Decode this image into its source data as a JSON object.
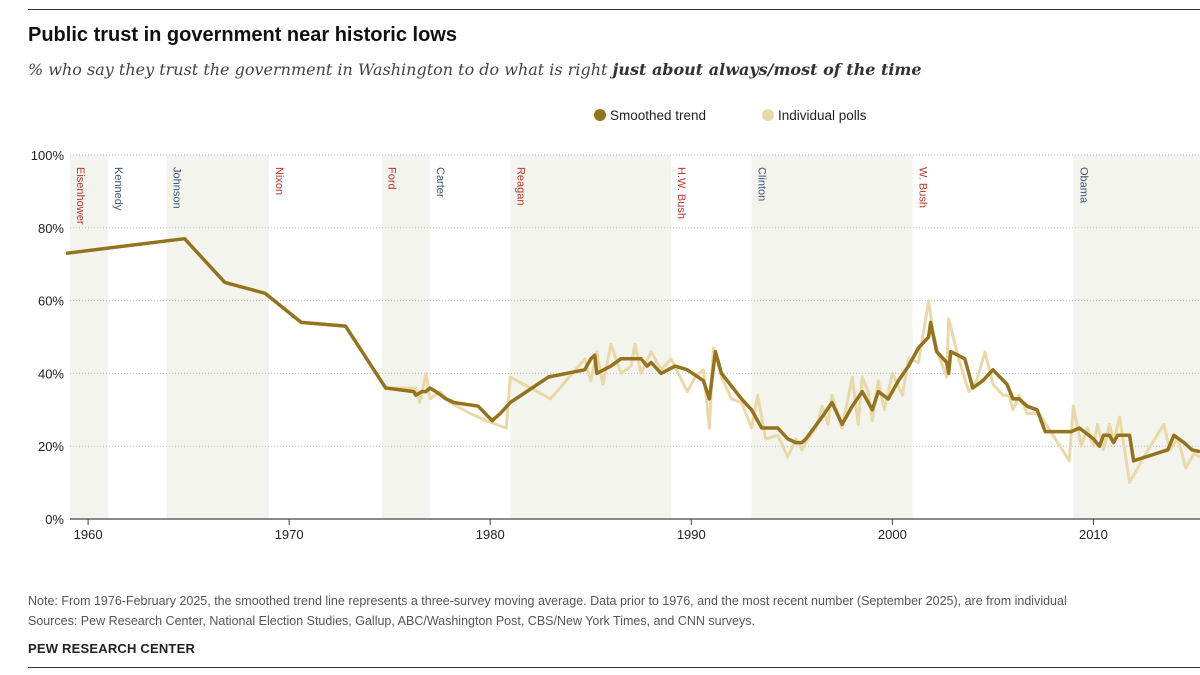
{
  "title": "Public trust in government near historic lows",
  "subtitle_plain": "% who say they trust the government in Washington to do what is right ",
  "subtitle_bold": "just about always/most of the time",
  "note": "Note: From 1976-February 2025, the smoothed trend line represents a three-survey moving average. Data prior to 1976, and the most recent number (September 2025), are from individual",
  "sources": "Sources: Pew Research Center, National Election Studies, Gallup, ABC/Washington Post, CBS/New York Times, and CNN surveys.",
  "brand": "PEW RESEARCH CENTER",
  "colors": {
    "smoothed": "#94731f",
    "polls": "#ead9a8",
    "rep": "#b8382c",
    "dem": "#3b5673",
    "shade": "#f4f4ef"
  },
  "chart_data": {
    "type": "line",
    "title": "Public trust in government near historic lows",
    "xlabel": "",
    "ylabel": "",
    "xlim": [
      1959.1,
      2015.3
    ],
    "ylim": [
      0,
      100
    ],
    "xticks": [
      1960,
      1970,
      1980,
      1990,
      2000,
      2010
    ],
    "yticks": [
      0,
      20,
      40,
      60,
      80,
      100
    ],
    "ytick_labels": [
      "0%",
      "20%",
      "40%",
      "60%",
      "80%",
      "100%"
    ],
    "grid": true,
    "legend": {
      "position": "top-center",
      "entries": [
        "Smoothed trend",
        "Individual polls"
      ]
    },
    "presidents": [
      {
        "name": "Eisenhower",
        "start": 1959.1,
        "end": 1961,
        "party": "rep"
      },
      {
        "name": "Kennedy",
        "start": 1961,
        "end": 1963.9,
        "party": "dem"
      },
      {
        "name": "Johnson",
        "start": 1963.9,
        "end": 1969,
        "party": "dem"
      },
      {
        "name": "Nixon",
        "start": 1969,
        "end": 1974.6,
        "party": "rep"
      },
      {
        "name": "Ford",
        "start": 1974.6,
        "end": 1977,
        "party": "rep"
      },
      {
        "name": "Carter",
        "start": 1977,
        "end": 1981,
        "party": "dem"
      },
      {
        "name": "Reagan",
        "start": 1981,
        "end": 1989,
        "party": "rep"
      },
      {
        "name": "H.W. Bush",
        "start": 1989,
        "end": 1993,
        "party": "rep"
      },
      {
        "name": "Clinton",
        "start": 1993,
        "end": 2001,
        "party": "dem"
      },
      {
        "name": "W. Bush",
        "start": 2001,
        "end": 2009,
        "party": "rep"
      },
      {
        "name": "Obama",
        "start": 2009,
        "end": 2015.3,
        "party": "dem"
      }
    ],
    "series": [
      {
        "name": "Individual polls",
        "points": [
          [
            1958.9,
            73
          ],
          [
            1964.8,
            77
          ],
          [
            1966.8,
            65
          ],
          [
            1968.8,
            62
          ],
          [
            1970.6,
            54
          ],
          [
            1972.8,
            53
          ],
          [
            1974.8,
            36
          ],
          [
            1976.3,
            36
          ],
          [
            1976.5,
            32
          ],
          [
            1976.8,
            40
          ],
          [
            1977,
            33
          ],
          [
            1977.5,
            35
          ],
          [
            1978,
            32
          ],
          [
            1979,
            29
          ],
          [
            1979.8,
            27
          ],
          [
            1980.3,
            26
          ],
          [
            1980.8,
            25
          ],
          [
            1981,
            39
          ],
          [
            1982,
            36
          ],
          [
            1983,
            33
          ],
          [
            1984.7,
            44
          ],
          [
            1985,
            38
          ],
          [
            1985.3,
            46
          ],
          [
            1985.6,
            37
          ],
          [
            1986,
            48
          ],
          [
            1986.5,
            40
          ],
          [
            1987,
            42
          ],
          [
            1987.2,
            48
          ],
          [
            1987.5,
            40
          ],
          [
            1988,
            46
          ],
          [
            1988.5,
            41
          ],
          [
            1989,
            44
          ],
          [
            1989.8,
            35
          ],
          [
            1990.2,
            39
          ],
          [
            1990.6,
            41
          ],
          [
            1990.9,
            25
          ],
          [
            1991.1,
            47
          ],
          [
            1991.5,
            39
          ],
          [
            1992,
            33
          ],
          [
            1992.5,
            32
          ],
          [
            1993,
            25
          ],
          [
            1993.3,
            34
          ],
          [
            1993.7,
            22
          ],
          [
            1994.3,
            23
          ],
          [
            1994.8,
            17
          ],
          [
            1995.2,
            22
          ],
          [
            1995.5,
            19
          ],
          [
            1995.8,
            22
          ],
          [
            1996.2,
            25
          ],
          [
            1996.5,
            31
          ],
          [
            1996.8,
            26
          ],
          [
            1997,
            34
          ],
          [
            1997.5,
            25
          ],
          [
            1998,
            39
          ],
          [
            1998.3,
            26
          ],
          [
            1998.5,
            39
          ],
          [
            1998.8,
            35
          ],
          [
            1999,
            27
          ],
          [
            1999.3,
            38
          ],
          [
            1999.6,
            30
          ],
          [
            2000,
            40
          ],
          [
            2000.5,
            34
          ],
          [
            2000.8,
            44
          ],
          [
            2001.3,
            43
          ],
          [
            2001.8,
            60
          ],
          [
            2002,
            52
          ],
          [
            2002.3,
            45
          ],
          [
            2002.7,
            39
          ],
          [
            2002.8,
            55
          ],
          [
            2003.3,
            44
          ],
          [
            2003.8,
            35
          ],
          [
            2004.2,
            38
          ],
          [
            2004.6,
            46
          ],
          [
            2005,
            37
          ],
          [
            2005.5,
            34
          ],
          [
            2005.8,
            34
          ],
          [
            2006,
            30
          ],
          [
            2006.3,
            34
          ],
          [
            2006.7,
            29
          ],
          [
            2007.3,
            29
          ],
          [
            2008.8,
            16
          ],
          [
            2009,
            31
          ],
          [
            2009.4,
            20
          ],
          [
            2009.7,
            25
          ],
          [
            2010,
            20
          ],
          [
            2010.2,
            26
          ],
          [
            2010.5,
            19
          ],
          [
            2010.8,
            26
          ],
          [
            2011,
            21
          ],
          [
            2011.3,
            28
          ],
          [
            2011.8,
            10
          ],
          [
            2012.5,
            17
          ],
          [
            2013.5,
            26
          ],
          [
            2013.8,
            19
          ],
          [
            2014.2,
            22
          ],
          [
            2014.6,
            14
          ],
          [
            2015,
            18
          ],
          [
            2015.3,
            17
          ]
        ]
      },
      {
        "name": "Smoothed trend",
        "points": [
          [
            1958.9,
            73
          ],
          [
            1964.8,
            77
          ],
          [
            1966.8,
            65
          ],
          [
            1968.8,
            62
          ],
          [
            1970.6,
            54
          ],
          [
            1972.8,
            53
          ],
          [
            1974.8,
            36
          ],
          [
            1976.2,
            35
          ],
          [
            1976.3,
            34
          ],
          [
            1976.6,
            35
          ],
          [
            1976.8,
            35
          ],
          [
            1977,
            36
          ],
          [
            1977.3,
            35
          ],
          [
            1977.8,
            33
          ],
          [
            1978.2,
            32
          ],
          [
            1979.4,
            31
          ],
          [
            1980.1,
            27
          ],
          [
            1980.5,
            29
          ],
          [
            1981,
            32
          ],
          [
            1982.9,
            39
          ],
          [
            1984.7,
            41
          ],
          [
            1985,
            44
          ],
          [
            1985.2,
            45
          ],
          [
            1985.3,
            40
          ],
          [
            1986,
            42
          ],
          [
            1986.5,
            44
          ],
          [
            1987.5,
            44
          ],
          [
            1987.8,
            42
          ],
          [
            1988,
            43
          ],
          [
            1988.5,
            40
          ],
          [
            1989.2,
            42
          ],
          [
            1989.8,
            41
          ],
          [
            1990.6,
            38
          ],
          [
            1990.9,
            33
          ],
          [
            1991.2,
            46
          ],
          [
            1991.5,
            40
          ],
          [
            1992.5,
            33
          ],
          [
            1993,
            30
          ],
          [
            1993.5,
            25
          ],
          [
            1994.3,
            25
          ],
          [
            1994.8,
            22
          ],
          [
            1995.2,
            21
          ],
          [
            1995.5,
            21
          ],
          [
            1995.7,
            22
          ],
          [
            1996.5,
            28
          ],
          [
            1997,
            32
          ],
          [
            1997.5,
            26
          ],
          [
            1998,
            31
          ],
          [
            1998.5,
            35
          ],
          [
            1999,
            30
          ],
          [
            1999.3,
            35
          ],
          [
            1999.8,
            33
          ],
          [
            2000.3,
            38
          ],
          [
            2000.8,
            42
          ],
          [
            2001.3,
            47
          ],
          [
            2001.8,
            50
          ],
          [
            2001.9,
            54
          ],
          [
            2002.2,
            46
          ],
          [
            2002.7,
            43
          ],
          [
            2002.8,
            40
          ],
          [
            2002.9,
            46
          ],
          [
            2003.6,
            44
          ],
          [
            2004,
            36
          ],
          [
            2004.5,
            38
          ],
          [
            2005,
            41
          ],
          [
            2005.7,
            37
          ],
          [
            2006,
            33
          ],
          [
            2006.3,
            33
          ],
          [
            2006.7,
            31
          ],
          [
            2007.2,
            30
          ],
          [
            2007.6,
            24
          ],
          [
            2008.9,
            24
          ],
          [
            2009.3,
            25
          ],
          [
            2010,
            22
          ],
          [
            2010.3,
            20
          ],
          [
            2010.5,
            23
          ],
          [
            2010.8,
            23
          ],
          [
            2011,
            21
          ],
          [
            2011.2,
            23
          ],
          [
            2011.8,
            23
          ],
          [
            2012,
            16
          ],
          [
            2013.7,
            19
          ],
          [
            2014,
            23
          ],
          [
            2014.5,
            21
          ],
          [
            2014.9,
            19
          ],
          [
            2015.3,
            18.5
          ]
        ]
      }
    ]
  }
}
